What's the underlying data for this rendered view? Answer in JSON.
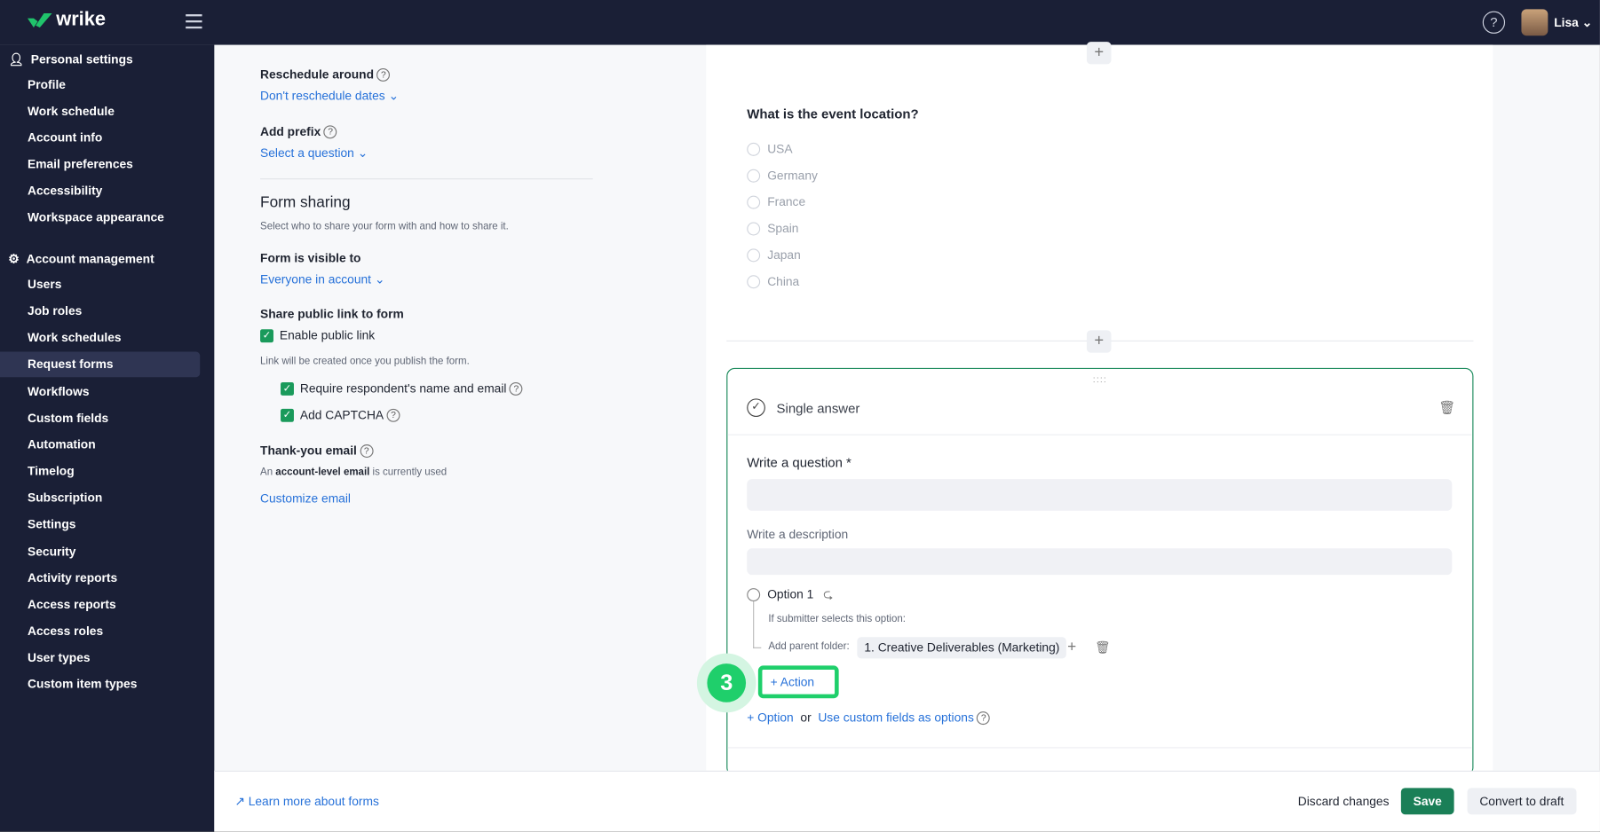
{
  "header": {
    "logo": "wrike",
    "user": "Lisa",
    "help_icon": "help-circle-icon"
  },
  "sidebar": {
    "personal_title": "Personal settings",
    "personal_items": [
      "Profile",
      "Work schedule",
      "Account info",
      "Email preferences",
      "Accessibility",
      "Workspace appearance"
    ],
    "account_title": "Account management",
    "account_items": [
      "Users",
      "Job roles",
      "Work schedules",
      "Request forms",
      "Workflows",
      "Custom fields",
      "Automation",
      "Timelog",
      "Subscription",
      "Settings",
      "Security",
      "Activity reports",
      "Access reports",
      "Access roles",
      "User types",
      "Custom item types"
    ],
    "active": "Request forms"
  },
  "settings": {
    "reschedule_label": "Reschedule around",
    "reschedule_value": "Don't reschedule dates",
    "prefix_label": "Add prefix",
    "prefix_value": "Select a question",
    "sharing_title": "Form sharing",
    "sharing_desc": "Select who to share your form with and how to share it.",
    "visible_label": "Form is visible to",
    "visible_value": "Everyone in account",
    "public_link_label": "Share public link to form",
    "enable_public_link": "Enable public link",
    "link_note": "Link will be created once you publish the form.",
    "require_name": "Require respondent's name and email",
    "captcha": "Add CAPTCHA",
    "thanks_label": "Thank-you email",
    "thanks_pre": "An ",
    "thanks_bold": "account-level email",
    "thanks_post": " is currently used",
    "customize": "Customize email"
  },
  "canvas": {
    "question": "What is the event location?",
    "options": [
      "USA",
      "Germany",
      "France",
      "Spain",
      "Japan",
      "China"
    ],
    "card": {
      "type": "Single answer",
      "question_label": "Write a question *",
      "description_label": "Write a description",
      "option1": "Option 1",
      "if_selects": "If submitter selects this option:",
      "parent_folder_label": "Add parent folder:",
      "parent_folder_value": "1. Creative Deliverables (Marketing)",
      "action": "Action",
      "add_option": "Option",
      "or": "or",
      "custom_fields": "Use custom fields as options"
    },
    "step_badge": "3"
  },
  "footer": {
    "learn_more": "Learn more about forms",
    "discard": "Discard changes",
    "save": "Save",
    "convert": "Convert to draft"
  },
  "colors": {
    "sidebar": "#1a1f36",
    "accent": "#1a8a5b",
    "link": "#2671d9",
    "highlight": "#1fcf6b"
  }
}
